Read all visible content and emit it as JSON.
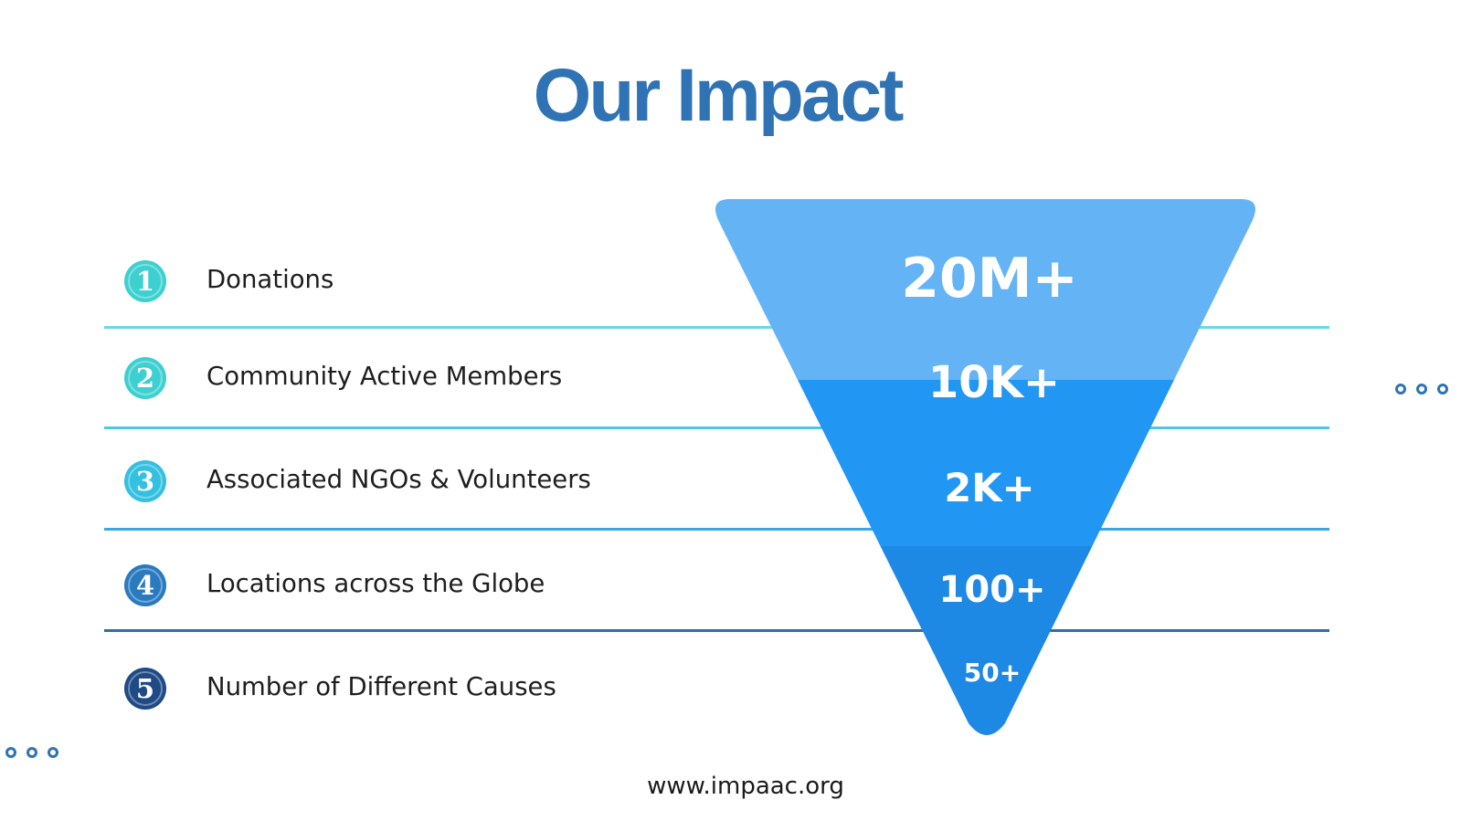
{
  "title": "Our Impact",
  "items": [
    {
      "number": "1",
      "label": "Donations",
      "value": "20M+",
      "badge_color": "#3ed0d0"
    },
    {
      "number": "2",
      "label": "Community Active Members",
      "value": "10K+",
      "badge_color": "#3ed0d0"
    },
    {
      "number": "3",
      "label": "Associated NGOs & Volunteers",
      "value": "2K+",
      "badge_color": "#34c0e0"
    },
    {
      "number": "4",
      "label": "Locations across the Globe",
      "value": "100+",
      "badge_color": "#2a7ac0"
    },
    {
      "number": "5",
      "label": "Number of Different Causes",
      "value": "50+",
      "badge_color": "#1e4a86"
    }
  ],
  "funnel_colors": [
    "#64b4f5",
    "#2196f3",
    "#1e88e5"
  ],
  "divider_colors": [
    "#6ad8e6",
    "#4ec8e0",
    "#3aa6dd",
    "#2a6fb0"
  ],
  "footer": "www.impaac.org"
}
